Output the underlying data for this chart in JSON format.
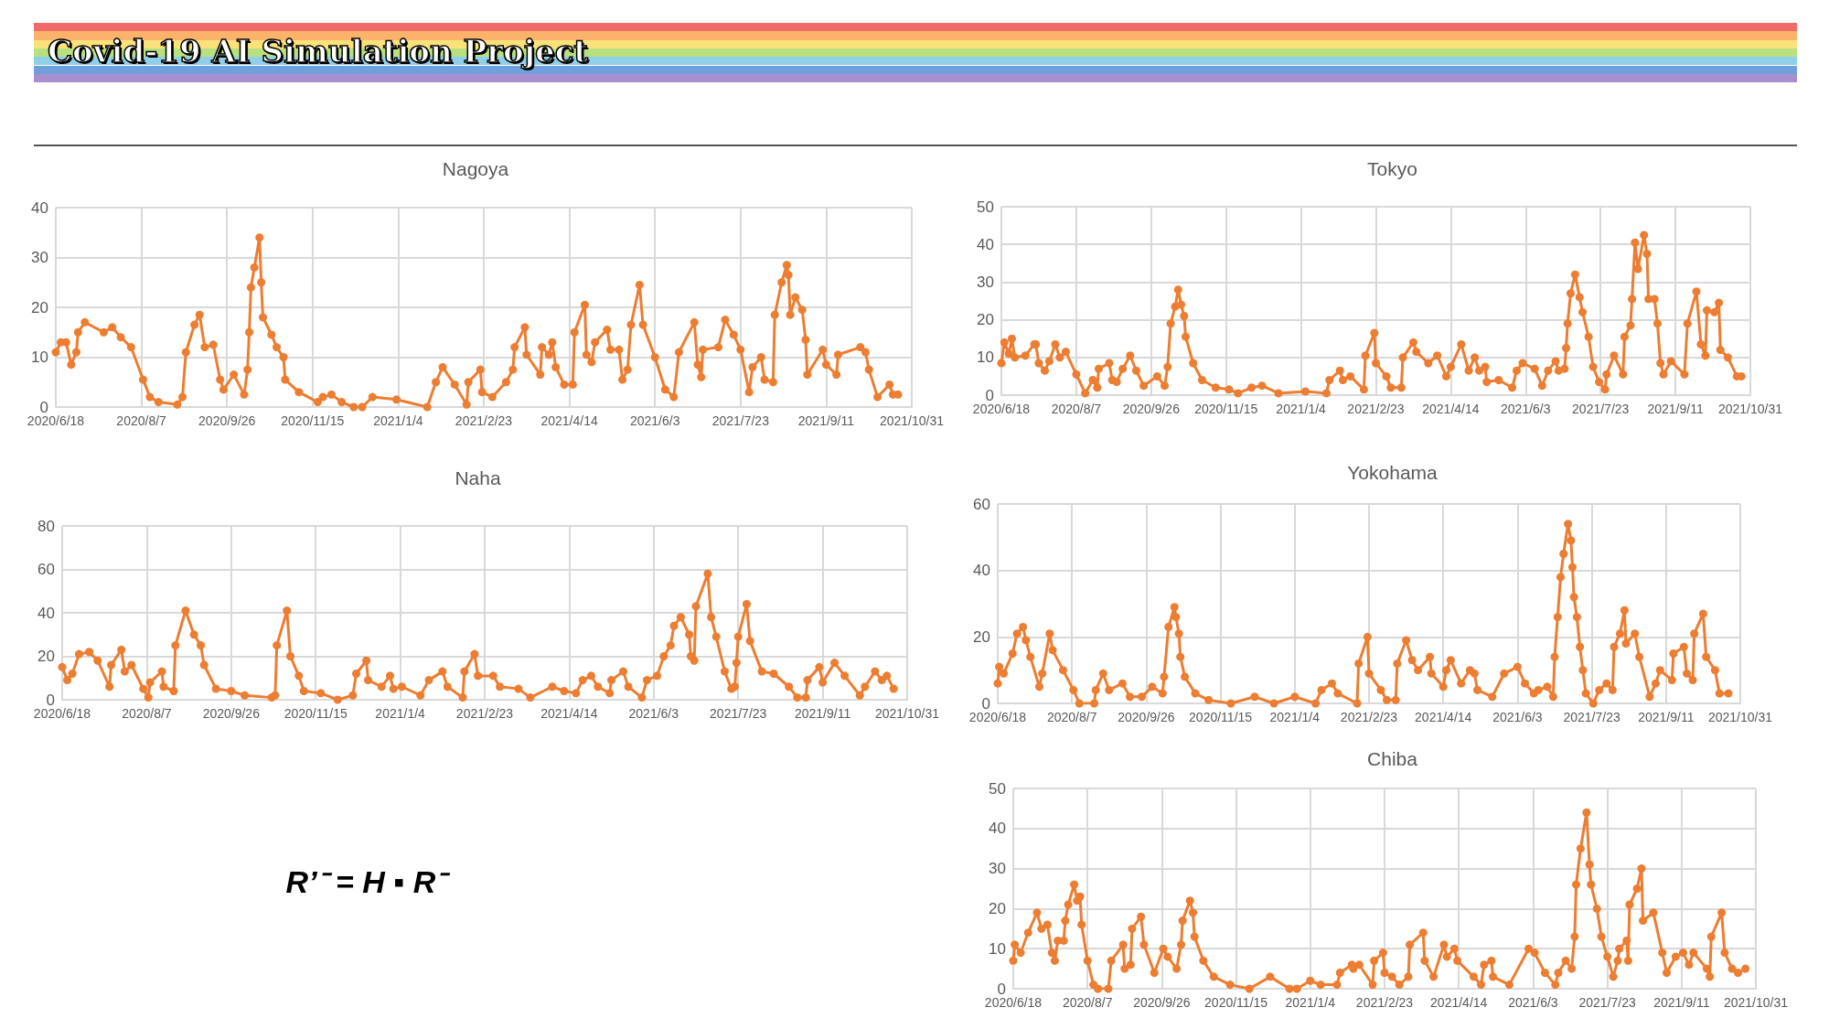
{
  "chart_data": [
    {
      "type": "other",
      "title": "Covid-19 AI Simulation Project"
    },
    {
      "type": "line",
      "title": "Nagoya",
      "grid": true,
      "marker": "circle",
      "line_style": "solid",
      "xlim": [
        "2020-06-18",
        "2021-10-31"
      ],
      "xticks": [
        {
          "value": "2020-06-18",
          "label": "2020/6/18"
        },
        {
          "value": "2020-08-07",
          "label": "2020/8/7"
        },
        {
          "value": "2020-09-26",
          "label": "2020/9/26"
        },
        {
          "value": "2020-11-15",
          "label": "2020/11/15"
        },
        {
          "value": "2021-01-04",
          "label": "2021/1/4"
        },
        {
          "value": "2021-02-23",
          "label": "2021/2/23"
        },
        {
          "value": "2021-04-14",
          "label": "2021/4/14"
        },
        {
          "value": "2021-06-03",
          "label": "2021/6/3"
        },
        {
          "value": "2021-07-23",
          "label": "2021/7/23"
        },
        {
          "value": "2021-09-11",
          "label": "2021/9/11"
        },
        {
          "value": "2021-10-31",
          "label": "2021/10/31"
        }
      ],
      "ylim": [
        0,
        40
      ],
      "yticks": [
        0,
        10,
        20,
        30,
        40
      ],
      "series": [
        {
          "color": "#ed7d31",
          "x": [
            "2020-06-18",
            "2020-06-21",
            "2020-06-24",
            "2020-06-27",
            "2020-06-30",
            "2020-07-01",
            "2020-07-05",
            "2020-07-16",
            "2020-07-21",
            "2020-07-26",
            "2020-08-01",
            "2020-08-08",
            "2020-08-12",
            "2020-08-17",
            "2020-08-28",
            "2020-08-31",
            "2020-09-02",
            "2020-09-07",
            "2020-09-10",
            "2020-09-13",
            "2020-09-18",
            "2020-09-22",
            "2020-09-24",
            "2020-09-30",
            "2020-10-06",
            "2020-10-08",
            "2020-10-09",
            "2020-10-10",
            "2020-10-12",
            "2020-10-15",
            "2020-10-16",
            "2020-10-17",
            "2020-10-22",
            "2020-10-25",
            "2020-10-29",
            "2020-10-30",
            "2020-11-07",
            "2020-11-18",
            "2020-11-21",
            "2020-11-26",
            "2020-12-02",
            "2020-12-09",
            "2020-12-14",
            "2020-12-20",
            "2021-01-03",
            "2021-01-21",
            "2021-01-26",
            "2021-01-30",
            "2021-02-06",
            "2021-02-13",
            "2021-02-14",
            "2021-02-21",
            "2021-02-22",
            "2021-02-28",
            "2021-03-08",
            "2021-03-12",
            "2021-03-13",
            "2021-03-19",
            "2021-03-20",
            "2021-03-28",
            "2021-03-29",
            "2021-04-02",
            "2021-04-04",
            "2021-04-06",
            "2021-04-11",
            "2021-04-16",
            "2021-04-17",
            "2021-04-23",
            "2021-04-24",
            "2021-04-27",
            "2021-04-29",
            "2021-05-06",
            "2021-05-08",
            "2021-05-13",
            "2021-05-15",
            "2021-05-18",
            "2021-05-20",
            "2021-05-25",
            "2021-05-27",
            "2021-06-03",
            "2021-06-09",
            "2021-06-14",
            "2021-06-17",
            "2021-06-26",
            "2021-06-28",
            "2021-06-30",
            "2021-07-01",
            "2021-07-10",
            "2021-07-14",
            "2021-07-19",
            "2021-07-23",
            "2021-07-28",
            "2021-07-30",
            "2021-08-04",
            "2021-08-06",
            "2021-08-11",
            "2021-08-12",
            "2021-08-16",
            "2021-08-19",
            "2021-08-20",
            "2021-08-21",
            "2021-08-24",
            "2021-08-28",
            "2021-08-30",
            "2021-08-31",
            "2021-09-09",
            "2021-09-11",
            "2021-09-17",
            "2021-09-18",
            "2021-10-01",
            "2021-10-04",
            "2021-10-06",
            "2021-10-11",
            "2021-10-18",
            "2021-10-20",
            "2021-10-23"
          ],
          "values": [
            11,
            13,
            13,
            8.5,
            11,
            15,
            17,
            15,
            16,
            14,
            12,
            5.5,
            2,
            1,
            0.5,
            2,
            11,
            16.5,
            18.5,
            12,
            12.5,
            5.5,
            3.5,
            6.5,
            2.5,
            7.5,
            15,
            24,
            28,
            34,
            25,
            18,
            14.5,
            12,
            10,
            5.5,
            3,
            1,
            2,
            2.5,
            1,
            0,
            0,
            2,
            1.5,
            0,
            5,
            8,
            4.5,
            0.5,
            5,
            7.5,
            3,
            2,
            5,
            7.5,
            12,
            16,
            10.5,
            6.5,
            12,
            10.5,
            13,
            8,
            4.5,
            4.5,
            15,
            20.5,
            10.5,
            9,
            13,
            15.5,
            11.5,
            11.5,
            5.5,
            7.5,
            16.5,
            24.5,
            16.5,
            10,
            3.5,
            2,
            11,
            17,
            8.5,
            6,
            11.5,
            12,
            17.5,
            14.5,
            11.5,
            3,
            8,
            10,
            5.5,
            5,
            18.5,
            25,
            28.5,
            26.5,
            18.5,
            22,
            19.5,
            13.5,
            6.5,
            11.5,
            8.5,
            6.5,
            10.5,
            12,
            11,
            7.5,
            2,
            4.5,
            2.5,
            2.5
          ]
        }
      ]
    },
    {
      "type": "line",
      "title": "Tokyo",
      "grid": true,
      "marker": "circle",
      "line_style": "solid",
      "xlim": [
        "2020-06-18",
        "2021-10-31"
      ],
      "xticks": [
        {
          "value": "2020-06-18",
          "label": "2020/6/18"
        },
        {
          "value": "2020-08-07",
          "label": "2020/8/7"
        },
        {
          "value": "2020-09-26",
          "label": "2020/9/26"
        },
        {
          "value": "2020-11-15",
          "label": "2020/11/15"
        },
        {
          "value": "2021-01-04",
          "label": "2021/1/4"
        },
        {
          "value": "2021-02-23",
          "label": "2021/2/23"
        },
        {
          "value": "2021-04-14",
          "label": "2021/4/14"
        },
        {
          "value": "2021-06-03",
          "label": "2021/6/3"
        },
        {
          "value": "2021-07-23",
          "label": "2021/7/23"
        },
        {
          "value": "2021-09-11",
          "label": "2021/9/11"
        },
        {
          "value": "2021-10-31",
          "label": "2021/10/31"
        }
      ],
      "ylim": [
        0,
        50
      ],
      "yticks": [
        0,
        10,
        20,
        30,
        40,
        50
      ],
      "series": [
        {
          "color": "#ed7d31",
          "x": [
            "2020-06-18",
            "2020-06-20",
            "2020-06-23",
            "2020-06-25",
            "2020-06-27",
            "2020-07-04",
            "2020-07-10",
            "2020-07-11",
            "2020-07-13",
            "2020-07-17",
            "2020-07-20",
            "2020-07-24",
            "2020-07-27",
            "2020-07-31",
            "2020-08-07",
            "2020-08-13",
            "2020-08-18",
            "2020-08-21",
            "2020-08-22",
            "2020-08-29",
            "2020-08-31",
            "2020-09-03",
            "2020-09-07",
            "2020-09-12",
            "2020-09-16",
            "2020-09-21",
            "2020-09-30",
            "2020-10-05",
            "2020-10-07",
            "2020-10-09",
            "2020-10-12",
            "2020-10-14",
            "2020-10-16",
            "2020-10-18",
            "2020-10-19",
            "2020-10-24",
            "2020-10-30",
            "2020-11-08",
            "2020-11-17",
            "2020-11-23",
            "2020-12-02",
            "2020-12-09",
            "2020-12-20",
            "2021-01-07",
            "2021-01-21",
            "2021-01-23",
            "2021-01-30",
            "2021-02-01",
            "2021-02-06",
            "2021-02-15",
            "2021-02-16",
            "2021-02-22",
            "2021-02-23",
            "2021-03-02",
            "2021-03-05",
            "2021-03-12",
            "2021-03-13",
            "2021-03-20",
            "2021-03-22",
            "2021-03-30",
            "2021-04-05",
            "2021-04-11",
            "2021-04-14",
            "2021-04-21",
            "2021-04-26",
            "2021-04-30",
            "2021-05-03",
            "2021-05-07",
            "2021-05-08",
            "2021-05-16",
            "2021-05-25",
            "2021-05-28",
            "2021-06-01",
            "2021-06-09",
            "2021-06-14",
            "2021-06-18",
            "2021-06-23",
            "2021-06-25",
            "2021-06-29",
            "2021-06-30",
            "2021-07-01",
            "2021-07-03",
            "2021-07-06",
            "2021-07-09",
            "2021-07-11",
            "2021-07-15",
            "2021-07-18",
            "2021-07-22",
            "2021-07-26",
            "2021-07-27",
            "2021-08-01",
            "2021-08-07",
            "2021-08-08",
            "2021-08-12",
            "2021-08-13",
            "2021-08-15",
            "2021-08-17",
            "2021-08-21",
            "2021-08-23",
            "2021-08-24",
            "2021-08-28",
            "2021-08-30",
            "2021-09-01",
            "2021-09-03",
            "2021-09-08",
            "2021-09-17",
            "2021-09-19",
            "2021-09-25",
            "2021-09-28",
            "2021-10-01",
            "2021-10-02",
            "2021-10-07",
            "2021-10-10",
            "2021-10-11",
            "2021-10-16",
            "2021-10-22",
            "2021-10-25"
          ],
          "values": [
            8.5,
            14,
            11,
            15,
            10,
            10.5,
            13.5,
            13.5,
            8.5,
            6.5,
            9,
            13.5,
            10,
            11.5,
            5.5,
            0.5,
            4,
            2,
            7,
            8.5,
            4,
            3.5,
            7,
            10.5,
            6.5,
            2.5,
            5,
            2.5,
            7.5,
            19,
            23.5,
            28,
            24,
            21,
            15.5,
            8.5,
            4,
            2,
            1.5,
            0.5,
            2,
            2.5,
            0.5,
            1,
            0.5,
            4,
            6.5,
            4,
            5,
            1.5,
            10.5,
            16.5,
            8.5,
            5,
            2,
            2,
            10,
            14,
            11.5,
            8.5,
            10.5,
            5,
            7.5,
            13.5,
            6.5,
            10,
            6.5,
            7.5,
            3.5,
            4,
            2,
            6.5,
            8.5,
            7,
            2.5,
            6.5,
            9,
            6.5,
            7,
            12.5,
            19,
            27,
            32,
            26,
            22,
            15.5,
            7.5,
            3.5,
            1.5,
            5.5,
            10.5,
            5.5,
            15.5,
            18.5,
            25.5,
            40.5,
            33.5,
            42.5,
            37.5,
            25.5,
            25.5,
            19,
            8.5,
            5.5,
            9,
            5.5,
            19,
            27.5,
            13.5,
            10.5,
            22.5,
            22,
            24.5,
            12,
            10,
            5,
            5
          ]
        }
      ]
    },
    {
      "type": "line",
      "title": "Naha",
      "grid": true,
      "marker": "circle",
      "line_style": "solid",
      "xlim": [
        "2020-06-18",
        "2021-10-31"
      ],
      "xticks": [
        {
          "value": "2020-06-18",
          "label": "2020/6/18"
        },
        {
          "value": "2020-08-07",
          "label": "2020/8/7"
        },
        {
          "value": "2020-09-26",
          "label": "2020/9/26"
        },
        {
          "value": "2020-11-15",
          "label": "2020/11/15"
        },
        {
          "value": "2021-01-04",
          "label": "2021/1/4"
        },
        {
          "value": "2021-02-23",
          "label": "2021/2/23"
        },
        {
          "value": "2021-04-14",
          "label": "2021/4/14"
        },
        {
          "value": "2021-06-03",
          "label": "2021/6/3"
        },
        {
          "value": "2021-07-23",
          "label": "2021/7/23"
        },
        {
          "value": "2021-09-11",
          "label": "2021/9/11"
        },
        {
          "value": "2021-10-31",
          "label": "2021/10/31"
        }
      ],
      "ylim": [
        0,
        80
      ],
      "yticks": [
        0,
        20,
        40,
        60,
        80
      ],
      "series": [
        {
          "color": "#ed7d31",
          "x": [
            "2020-06-18",
            "2020-06-21",
            "2020-06-24",
            "2020-06-28",
            "2020-07-04",
            "2020-07-09",
            "2020-07-16",
            "2020-07-17",
            "2020-07-23",
            "2020-07-25",
            "2020-07-29",
            "2020-08-05",
            "2020-08-08",
            "2020-08-09",
            "2020-08-16",
            "2020-08-17",
            "2020-08-23",
            "2020-08-24",
            "2020-08-30",
            "2020-09-04",
            "2020-09-08",
            "2020-09-10",
            "2020-09-17",
            "2020-09-26",
            "2020-10-04",
            "2020-10-20",
            "2020-10-22",
            "2020-10-23",
            "2020-10-29",
            "2020-10-31",
            "2020-11-05",
            "2020-11-08",
            "2020-11-18",
            "2020-11-28",
            "2020-12-07",
            "2020-12-09",
            "2020-12-15",
            "2020-12-16",
            "2020-12-24",
            "2020-12-29",
            "2020-12-31",
            "2021-01-05",
            "2021-01-16",
            "2021-01-21",
            "2021-01-29",
            "2021-02-01",
            "2021-02-10",
            "2021-02-11",
            "2021-02-17",
            "2021-02-19",
            "2021-02-28",
            "2021-03-04",
            "2021-03-15",
            "2021-03-22",
            "2021-04-04",
            "2021-04-11",
            "2021-04-18",
            "2021-04-22",
            "2021-04-27",
            "2021-05-01",
            "2021-05-08",
            "2021-05-09",
            "2021-05-16",
            "2021-05-19",
            "2021-05-27",
            "2021-05-30",
            "2021-06-05",
            "2021-06-09",
            "2021-06-13",
            "2021-06-15",
            "2021-06-19",
            "2021-06-24",
            "2021-06-25",
            "2021-06-27",
            "2021-06-28",
            "2021-07-05",
            "2021-07-07",
            "2021-07-10",
            "2021-07-15",
            "2021-07-19",
            "2021-07-21",
            "2021-07-22",
            "2021-07-23",
            "2021-07-28",
            "2021-07-30",
            "2021-08-06",
            "2021-08-13",
            "2021-08-22",
            "2021-08-27",
            "2021-09-01",
            "2021-09-02",
            "2021-09-09",
            "2021-09-11",
            "2021-09-18",
            "2021-09-24",
            "2021-10-03",
            "2021-10-06",
            "2021-10-12",
            "2021-10-16",
            "2021-10-19",
            "2021-10-23"
          ],
          "values": [
            15,
            9,
            12,
            21,
            22,
            18,
            6,
            16,
            23,
            13,
            16,
            5,
            1,
            8,
            13,
            6,
            4,
            25,
            41,
            30,
            25,
            16,
            5,
            4,
            2,
            1,
            2,
            25,
            41,
            20,
            11,
            4,
            3,
            0,
            2,
            12,
            18,
            9,
            6,
            11,
            5,
            6,
            2,
            9,
            13,
            6,
            1,
            13,
            21,
            11,
            11,
            6,
            5,
            1,
            6,
            4,
            3,
            9,
            11,
            6,
            3,
            9,
            13,
            6,
            1,
            9,
            11,
            20,
            25,
            34,
            38,
            30,
            20,
            18,
            43,
            58,
            38,
            29,
            13,
            5,
            6,
            17,
            29,
            44,
            27,
            13,
            12,
            6,
            1,
            1,
            9,
            15,
            8,
            17,
            11,
            2,
            6,
            13,
            9,
            11,
            5
          ]
        }
      ]
    },
    {
      "type": "line",
      "title": "Yokohama",
      "grid": true,
      "marker": "circle",
      "line_style": "solid",
      "xlim": [
        "2020-06-18",
        "2021-10-31"
      ],
      "xticks": [
        {
          "value": "2020-06-18",
          "label": "2020/6/18"
        },
        {
          "value": "2020-08-07",
          "label": "2020/8/7"
        },
        {
          "value": "2020-09-26",
          "label": "2020/9/26"
        },
        {
          "value": "2020-11-15",
          "label": "2020/11/15"
        },
        {
          "value": "2021-01-04",
          "label": "2021/1/4"
        },
        {
          "value": "2021-02-23",
          "label": "2021/2/23"
        },
        {
          "value": "2021-04-14",
          "label": "2021/4/14"
        },
        {
          "value": "2021-06-03",
          "label": "2021/6/3"
        },
        {
          "value": "2021-07-23",
          "label": "2021/7/23"
        },
        {
          "value": "2021-09-11",
          "label": "2021/9/11"
        },
        {
          "value": "2021-10-31",
          "label": "2021/10/31"
        }
      ],
      "ylim": [
        0,
        60
      ],
      "yticks": [
        0,
        20,
        40,
        60
      ],
      "series": [
        {
          "color": "#ed7d31",
          "x": [
            "2020-06-18",
            "2020-06-19",
            "2020-06-22",
            "2020-06-28",
            "2020-07-01",
            "2020-07-05",
            "2020-07-07",
            "2020-07-10",
            "2020-07-16",
            "2020-07-18",
            "2020-07-23",
            "2020-07-25",
            "2020-08-01",
            "2020-08-08",
            "2020-08-12",
            "2020-08-22",
            "2020-08-23",
            "2020-08-28",
            "2020-09-01",
            "2020-09-10",
            "2020-09-15",
            "2020-09-23",
            "2020-09-30",
            "2020-10-07",
            "2020-10-08",
            "2020-10-11",
            "2020-10-15",
            "2020-10-16",
            "2020-10-18",
            "2020-10-19",
            "2020-10-22",
            "2020-10-29",
            "2020-11-07",
            "2020-11-22",
            "2020-12-08",
            "2020-12-21",
            "2021-01-04",
            "2021-01-18",
            "2021-01-22",
            "2021-01-29",
            "2021-02-02",
            "2021-02-15",
            "2021-02-16",
            "2021-02-22",
            "2021-02-23",
            "2021-03-03",
            "2021-03-07",
            "2021-03-13",
            "2021-03-14",
            "2021-03-20",
            "2021-03-24",
            "2021-03-28",
            "2021-04-05",
            "2021-04-06",
            "2021-04-14",
            "2021-04-16",
            "2021-04-19",
            "2021-04-26",
            "2021-05-02",
            "2021-05-05",
            "2021-05-07",
            "2021-05-17",
            "2021-05-25",
            "2021-06-03",
            "2021-06-08",
            "2021-06-14",
            "2021-06-17",
            "2021-06-23",
            "2021-06-27",
            "2021-06-28",
            "2021-06-30",
            "2021-07-02",
            "2021-07-04",
            "2021-07-07",
            "2021-07-09",
            "2021-07-10",
            "2021-07-11",
            "2021-07-13",
            "2021-07-15",
            "2021-07-17",
            "2021-07-19",
            "2021-07-24",
            "2021-07-28",
            "2021-08-02",
            "2021-08-06",
            "2021-08-07",
            "2021-08-11",
            "2021-08-14",
            "2021-08-15",
            "2021-08-21",
            "2021-08-24",
            "2021-08-31",
            "2021-09-04",
            "2021-09-07",
            "2021-09-15",
            "2021-09-16",
            "2021-09-23",
            "2021-09-25",
            "2021-09-29",
            "2021-09-30",
            "2021-10-06",
            "2021-10-08",
            "2021-10-14",
            "2021-10-17",
            "2021-10-23"
          ],
          "values": [
            6,
            11,
            9,
            15,
            21,
            23,
            19,
            14,
            5,
            9,
            21,
            16,
            10,
            4,
            0,
            0,
            4,
            9,
            4,
            6,
            2,
            2,
            5,
            3,
            8,
            23,
            29,
            26,
            21,
            14,
            8,
            3,
            1,
            0,
            2,
            0,
            2,
            0,
            4,
            6,
            3,
            0,
            12,
            20,
            9,
            4,
            1,
            1,
            12,
            19,
            13,
            10,
            14,
            9,
            5,
            10,
            13,
            6,
            10,
            9,
            4,
            2,
            9,
            11,
            6,
            3,
            4,
            5,
            2,
            14,
            26,
            38,
            45,
            54,
            49,
            41,
            32,
            26,
            17,
            10,
            3,
            0,
            4,
            6,
            4,
            17,
            21,
            28,
            18,
            21,
            14,
            2,
            6,
            10,
            7,
            15,
            17,
            9,
            7,
            21,
            27,
            14,
            10,
            3,
            3
          ]
        }
      ]
    },
    {
      "type": "other",
      "annotations": [
        "R’⁻ = H ▪ R⁻"
      ]
    },
    {
      "type": "line",
      "title": "Chiba",
      "grid": true,
      "marker": "circle",
      "line_style": "solid",
      "xlim": [
        "2020-06-18",
        "2021-10-31"
      ],
      "xticks": [
        {
          "value": "2020-06-18",
          "label": "2020/6/18"
        },
        {
          "value": "2020-08-07",
          "label": "2020/8/7"
        },
        {
          "value": "2020-09-26",
          "label": "2020/9/26"
        },
        {
          "value": "2020-11-15",
          "label": "2020/11/15"
        },
        {
          "value": "2021-01-04",
          "label": "2021/1/4"
        },
        {
          "value": "2021-02-23",
          "label": "2021/2/23"
        },
        {
          "value": "2021-04-14",
          "label": "2021/4/14"
        },
        {
          "value": "2021-06-03",
          "label": "2021/6/3"
        },
        {
          "value": "2021-07-23",
          "label": "2021/7/23"
        },
        {
          "value": "2021-09-11",
          "label": "2021/9/11"
        },
        {
          "value": "2021-10-31",
          "label": "2021/10/31"
        }
      ],
      "ylim": [
        0,
        50
      ],
      "yticks": [
        0,
        10,
        20,
        30,
        40,
        50
      ],
      "series": [
        {
          "color": "#ed7d31",
          "x": [
            "2020-06-18",
            "2020-06-19",
            "2020-06-23",
            "2020-06-28",
            "2020-07-04",
            "2020-07-07",
            "2020-07-11",
            "2020-07-14",
            "2020-07-16",
            "2020-07-18",
            "2020-07-22",
            "2020-07-23",
            "2020-07-25",
            "2020-07-29",
            "2020-07-31",
            "2020-08-02",
            "2020-08-03",
            "2020-08-07",
            "2020-08-11",
            "2020-08-14",
            "2020-08-21",
            "2020-08-23",
            "2020-08-31",
            "2020-09-01",
            "2020-09-05",
            "2020-09-06",
            "2020-09-12",
            "2020-09-14",
            "2020-09-21",
            "2020-09-27",
            "2020-09-30",
            "2020-10-06",
            "2020-10-09",
            "2020-10-10",
            "2020-10-15",
            "2020-10-17",
            "2020-10-18",
            "2020-10-24",
            "2020-10-31",
            "2020-11-11",
            "2020-11-24",
            "2020-12-08",
            "2020-12-21",
            "2020-12-26",
            "2021-01-04",
            "2021-01-11",
            "2021-01-22",
            "2021-01-24",
            "2021-02-01",
            "2021-02-02",
            "2021-02-06",
            "2021-02-15",
            "2021-02-16",
            "2021-02-22",
            "2021-02-23",
            "2021-02-28",
            "2021-03-05",
            "2021-03-11",
            "2021-03-12",
            "2021-03-21",
            "2021-03-22",
            "2021-03-28",
            "2021-04-04",
            "2021-04-06",
            "2021-04-11",
            "2021-04-13",
            "2021-04-24",
            "2021-04-29",
            "2021-05-01",
            "2021-05-06",
            "2021-05-07",
            "2021-05-18",
            "2021-05-31",
            "2021-06-04",
            "2021-06-11",
            "2021-06-18",
            "2021-06-20",
            "2021-06-25",
            "2021-06-29",
            "2021-07-01",
            "2021-07-02",
            "2021-07-05",
            "2021-07-09",
            "2021-07-11",
            "2021-07-12",
            "2021-07-16",
            "2021-07-19",
            "2021-07-23",
            "2021-07-27",
            "2021-07-30",
            "2021-07-31",
            "2021-08-05",
            "2021-08-06",
            "2021-08-07",
            "2021-08-12",
            "2021-08-15",
            "2021-08-16",
            "2021-08-23",
            "2021-08-29",
            "2021-09-01",
            "2021-09-07",
            "2021-09-12",
            "2021-09-16",
            "2021-09-19",
            "2021-09-28",
            "2021-09-30",
            "2021-10-01",
            "2021-10-08",
            "2021-10-10",
            "2021-10-15",
            "2021-10-19",
            "2021-10-24"
          ],
          "values": [
            7,
            11,
            9,
            14,
            19,
            15,
            16,
            9,
            7,
            12,
            12,
            17,
            21,
            26,
            22,
            23,
            16,
            7,
            1,
            0,
            0,
            7,
            11,
            5,
            6,
            15,
            18,
            11,
            4,
            10,
            8,
            5,
            11,
            17,
            22,
            19,
            13,
            7,
            3,
            1,
            0,
            3,
            0,
            0,
            2,
            1,
            1,
            4,
            6,
            5,
            6,
            1,
            7,
            9,
            4,
            3,
            1,
            3,
            11,
            14,
            7,
            3,
            11,
            8,
            10,
            7,
            3,
            1,
            6,
            7,
            3,
            1,
            10,
            9,
            4,
            1,
            4,
            7,
            5,
            13,
            26,
            35,
            44,
            31,
            26,
            20,
            13,
            8,
            3,
            7,
            10,
            12,
            7,
            21,
            25,
            30,
            17,
            19,
            9,
            4,
            8,
            9,
            6,
            9,
            5,
            3,
            13,
            19,
            9,
            5,
            4,
            5
          ]
        }
      ]
    }
  ]
}
